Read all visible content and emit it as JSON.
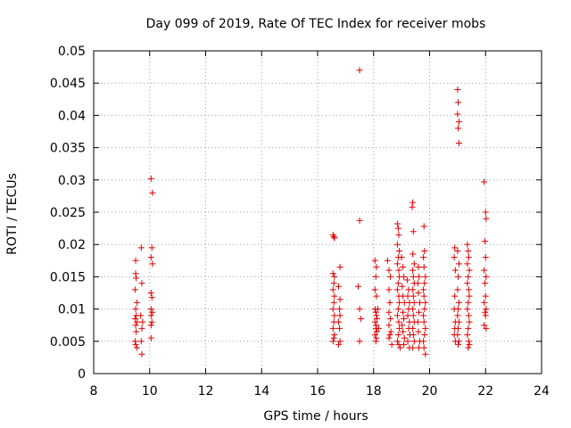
{
  "chart_data": {
    "type": "scatter",
    "title": "Day 099 of 2019, Rate Of TEC Index for receiver mobs",
    "xlabel": "GPS time / hours",
    "ylabel": "ROTI / TECUs",
    "xlim": [
      8,
      24
    ],
    "ylim": [
      0,
      0.05
    ],
    "x_ticks": [
      8,
      10,
      12,
      14,
      16,
      18,
      20,
      22,
      24
    ],
    "x_tick_labels": [
      "8",
      "10",
      "12",
      "14",
      "16",
      "18",
      "20",
      "22",
      "24"
    ],
    "y_ticks": [
      0,
      0.005,
      0.01,
      0.015,
      0.02,
      0.025,
      0.03,
      0.035,
      0.04,
      0.045,
      0.05
    ],
    "y_tick_labels": [
      "0",
      "0.005",
      "0.01",
      "0.015",
      "0.02",
      "0.025",
      "0.03",
      "0.035",
      "0.04",
      "0.045",
      "0.05"
    ],
    "grid": true,
    "marker": "+",
    "color": "#e00000",
    "series": [
      {
        "name": "ROTI",
        "points": [
          [
            9.5,
            0.0175
          ],
          [
            9.5,
            0.0155
          ],
          [
            9.52,
            0.0148
          ],
          [
            9.48,
            0.013
          ],
          [
            9.55,
            0.011
          ],
          [
            9.5,
            0.01
          ],
          [
            9.52,
            0.009
          ],
          [
            9.48,
            0.0085
          ],
          [
            9.55,
            0.008
          ],
          [
            9.5,
            0.0075
          ],
          [
            9.52,
            0.0065
          ],
          [
            9.48,
            0.005
          ],
          [
            9.5,
            0.0045
          ],
          [
            9.55,
            0.004
          ],
          [
            9.7,
            0.0195
          ],
          [
            9.72,
            0.014
          ],
          [
            9.68,
            0.009
          ],
          [
            9.75,
            0.008
          ],
          [
            9.72,
            0.007
          ],
          [
            9.7,
            0.005
          ],
          [
            9.72,
            0.003
          ],
          [
            10.05,
            0.0302
          ],
          [
            10.1,
            0.028
          ],
          [
            10.08,
            0.0195
          ],
          [
            10.05,
            0.018
          ],
          [
            10.1,
            0.017
          ],
          [
            10.05,
            0.0125
          ],
          [
            10.08,
            0.0118
          ],
          [
            10.05,
            0.01
          ],
          [
            10.1,
            0.0095
          ],
          [
            10.05,
            0.009
          ],
          [
            10.08,
            0.008
          ],
          [
            10.05,
            0.0075
          ],
          [
            10.05,
            0.0055
          ],
          [
            16.55,
            0.0215
          ],
          [
            16.6,
            0.021
          ],
          [
            16.58,
            0.0212
          ],
          [
            16.55,
            0.0155
          ],
          [
            16.6,
            0.015
          ],
          [
            16.58,
            0.014
          ],
          [
            16.55,
            0.013
          ],
          [
            16.6,
            0.012
          ],
          [
            16.58,
            0.011
          ],
          [
            16.55,
            0.01
          ],
          [
            16.6,
            0.009
          ],
          [
            16.58,
            0.008
          ],
          [
            16.55,
            0.007
          ],
          [
            16.6,
            0.006
          ],
          [
            16.58,
            0.0055
          ],
          [
            16.55,
            0.005
          ],
          [
            16.8,
            0.0165
          ],
          [
            16.75,
            0.0135
          ],
          [
            16.8,
            0.0115
          ],
          [
            16.78,
            0.01
          ],
          [
            16.8,
            0.009
          ],
          [
            16.75,
            0.008
          ],
          [
            16.78,
            0.007
          ],
          [
            16.8,
            0.005
          ],
          [
            16.75,
            0.0045
          ],
          [
            17.5,
            0.047
          ],
          [
            17.5,
            0.0237
          ],
          [
            17.45,
            0.0135
          ],
          [
            17.5,
            0.01
          ],
          [
            17.55,
            0.0085
          ],
          [
            17.5,
            0.005
          ],
          [
            18.05,
            0.0175
          ],
          [
            18.1,
            0.0165
          ],
          [
            18.08,
            0.015
          ],
          [
            18.05,
            0.013
          ],
          [
            18.1,
            0.012
          ],
          [
            18.05,
            0.01
          ],
          [
            18.08,
            0.0095
          ],
          [
            18.1,
            0.009
          ],
          [
            18.12,
            0.0085
          ],
          [
            18.05,
            0.008
          ],
          [
            18.1,
            0.0075
          ],
          [
            18.08,
            0.007
          ],
          [
            18.12,
            0.0065
          ],
          [
            18.05,
            0.006
          ],
          [
            18.1,
            0.0055
          ],
          [
            18.08,
            0.005
          ],
          [
            18.15,
            0.01
          ],
          [
            18.18,
            0.007
          ],
          [
            18.5,
            0.0175
          ],
          [
            18.55,
            0.016
          ],
          [
            18.6,
            0.015
          ],
          [
            18.55,
            0.013
          ],
          [
            18.58,
            0.011
          ],
          [
            18.55,
            0.0095
          ],
          [
            18.6,
            0.0085
          ],
          [
            18.55,
            0.0075
          ],
          [
            18.62,
            0.0065
          ],
          [
            18.58,
            0.006
          ],
          [
            18.55,
            0.0055
          ],
          [
            18.65,
            0.0045
          ],
          [
            18.85,
            0.0232
          ],
          [
            18.88,
            0.0225
          ],
          [
            18.9,
            0.0215
          ],
          [
            18.85,
            0.02
          ],
          [
            18.92,
            0.019
          ],
          [
            18.88,
            0.018
          ],
          [
            18.85,
            0.017
          ],
          [
            18.9,
            0.016
          ],
          [
            18.92,
            0.015
          ],
          [
            18.88,
            0.014
          ],
          [
            18.85,
            0.013
          ],
          [
            18.9,
            0.012
          ],
          [
            18.92,
            0.011
          ],
          [
            18.88,
            0.01
          ],
          [
            18.85,
            0.009
          ],
          [
            18.9,
            0.008
          ],
          [
            18.92,
            0.007
          ],
          [
            18.88,
            0.006
          ],
          [
            18.85,
            0.005
          ],
          [
            18.9,
            0.0045
          ],
          [
            18.95,
            0.004
          ],
          [
            19.0,
            0.018
          ],
          [
            19.05,
            0.0165
          ],
          [
            19.08,
            0.015
          ],
          [
            19.02,
            0.0135
          ],
          [
            19.05,
            0.012
          ],
          [
            19.1,
            0.011
          ],
          [
            19.05,
            0.0095
          ],
          [
            19.08,
            0.0085
          ],
          [
            19.02,
            0.0075
          ],
          [
            19.05,
            0.0065
          ],
          [
            19.1,
            0.0055
          ],
          [
            19.08,
            0.0045
          ],
          [
            19.2,
            0.0145
          ],
          [
            19.25,
            0.013
          ],
          [
            19.22,
            0.012
          ],
          [
            19.28,
            0.011
          ],
          [
            19.25,
            0.01
          ],
          [
            19.22,
            0.009
          ],
          [
            19.28,
            0.008
          ],
          [
            19.25,
            0.007
          ],
          [
            19.3,
            0.006
          ],
          [
            19.22,
            0.005
          ],
          [
            19.28,
            0.004
          ],
          [
            19.4,
            0.0265
          ],
          [
            19.38,
            0.0258
          ],
          [
            19.42,
            0.022
          ],
          [
            19.4,
            0.0185
          ],
          [
            19.45,
            0.017
          ],
          [
            19.4,
            0.016
          ],
          [
            19.42,
            0.015
          ],
          [
            19.45,
            0.014
          ],
          [
            19.4,
            0.013
          ],
          [
            19.42,
            0.012
          ],
          [
            19.45,
            0.011
          ],
          [
            19.4,
            0.01
          ],
          [
            19.42,
            0.009
          ],
          [
            19.45,
            0.008
          ],
          [
            19.4,
            0.007
          ],
          [
            19.42,
            0.006
          ],
          [
            19.45,
            0.005
          ],
          [
            19.4,
            0.004
          ],
          [
            19.6,
            0.0165
          ],
          [
            19.62,
            0.015
          ],
          [
            19.58,
            0.014
          ],
          [
            19.6,
            0.0125
          ],
          [
            19.65,
            0.011
          ],
          [
            19.62,
            0.0095
          ],
          [
            19.58,
            0.008
          ],
          [
            19.6,
            0.0065
          ],
          [
            19.65,
            0.005
          ],
          [
            19.62,
            0.004
          ],
          [
            19.8,
            0.0228
          ],
          [
            19.82,
            0.019
          ],
          [
            19.78,
            0.018
          ],
          [
            19.8,
            0.0165
          ],
          [
            19.85,
            0.015
          ],
          [
            19.82,
            0.014
          ],
          [
            19.78,
            0.013
          ],
          [
            19.8,
            0.012
          ],
          [
            19.85,
            0.011
          ],
          [
            19.82,
            0.01
          ],
          [
            19.78,
            0.009
          ],
          [
            19.8,
            0.008
          ],
          [
            19.85,
            0.007
          ],
          [
            19.82,
            0.006
          ],
          [
            19.78,
            0.005
          ],
          [
            19.8,
            0.004
          ],
          [
            19.85,
            0.003
          ],
          [
            20.9,
            0.0195
          ],
          [
            20.88,
            0.018
          ],
          [
            20.92,
            0.016
          ],
          [
            20.9,
            0.012
          ],
          [
            20.88,
            0.01
          ],
          [
            20.92,
            0.008
          ],
          [
            20.9,
            0.007
          ],
          [
            20.88,
            0.006
          ],
          [
            20.92,
            0.005
          ],
          [
            21.0,
            0.044
          ],
          [
            21.02,
            0.042
          ],
          [
            21.0,
            0.0402
          ],
          [
            21.05,
            0.039
          ],
          [
            21.02,
            0.038
          ],
          [
            21.05,
            0.0357
          ],
          [
            21.0,
            0.019
          ],
          [
            21.05,
            0.017
          ],
          [
            21.02,
            0.015
          ],
          [
            21.0,
            0.013
          ],
          [
            21.05,
            0.011
          ],
          [
            21.02,
            0.01
          ],
          [
            21.0,
            0.009
          ],
          [
            21.05,
            0.008
          ],
          [
            21.02,
            0.007
          ],
          [
            21.0,
            0.006
          ],
          [
            21.05,
            0.005
          ],
          [
            21.02,
            0.0045
          ],
          [
            21.35,
            0.02
          ],
          [
            21.38,
            0.019
          ],
          [
            21.4,
            0.018
          ],
          [
            21.35,
            0.017
          ],
          [
            21.42,
            0.016
          ],
          [
            21.38,
            0.015
          ],
          [
            21.35,
            0.014
          ],
          [
            21.4,
            0.013
          ],
          [
            21.42,
            0.012
          ],
          [
            21.38,
            0.011
          ],
          [
            21.35,
            0.01
          ],
          [
            21.4,
            0.009
          ],
          [
            21.42,
            0.008
          ],
          [
            21.38,
            0.007
          ],
          [
            21.35,
            0.006
          ],
          [
            21.4,
            0.005
          ],
          [
            21.42,
            0.0045
          ],
          [
            21.38,
            0.004
          ],
          [
            21.95,
            0.0297
          ],
          [
            22.0,
            0.025
          ],
          [
            22.02,
            0.024
          ],
          [
            21.98,
            0.0205
          ],
          [
            22.0,
            0.018
          ],
          [
            21.95,
            0.016
          ],
          [
            22.02,
            0.015
          ],
          [
            21.98,
            0.014
          ],
          [
            22.0,
            0.012
          ],
          [
            21.95,
            0.011
          ],
          [
            22.02,
            0.01
          ],
          [
            21.98,
            0.0095
          ],
          [
            22.0,
            0.009
          ],
          [
            21.95,
            0.0075
          ],
          [
            22.02,
            0.007
          ]
        ]
      }
    ]
  }
}
